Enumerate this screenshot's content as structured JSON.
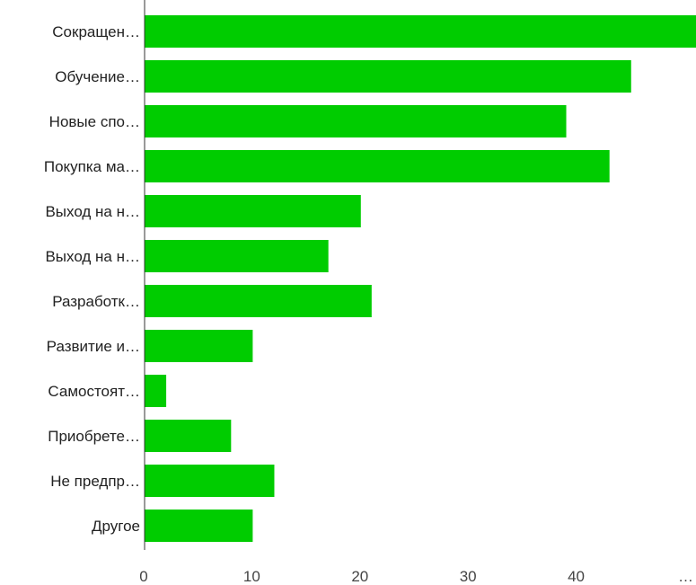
{
  "chart_data": {
    "type": "bar",
    "orientation": "horizontal",
    "categories": [
      "Сокращен…",
      "Обучение…",
      "Новые спо…",
      "Покупка ма…",
      "Выход на н…",
      "Выход на н…",
      "Разработк…",
      "Развитие и…",
      "Самостоят…",
      "Приобрете…",
      "Не предпр…",
      "Другое"
    ],
    "values": [
      51,
      45,
      39,
      43,
      20,
      17,
      21,
      10,
      2,
      8,
      12,
      10
    ],
    "xlim": [
      0,
      51
    ],
    "x_ticks": [
      0,
      10,
      20,
      30,
      40
    ],
    "x_tick_labels": [
      "0",
      "10",
      "20",
      "30",
      "40"
    ],
    "x_overflow_tick_label": "…",
    "title": "",
    "xlabel": "",
    "ylabel": "",
    "grid": false,
    "legend": "none",
    "bar_color": "#00cc00",
    "axis_color": "#333333"
  }
}
